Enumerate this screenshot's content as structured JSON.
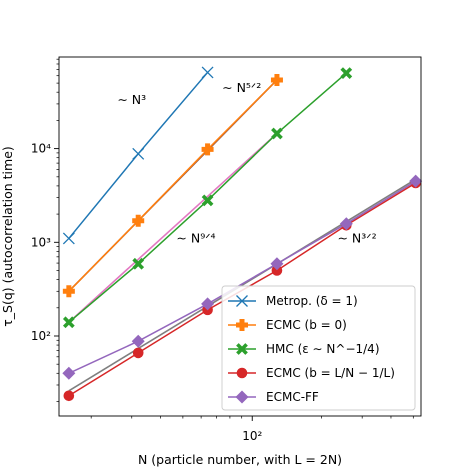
{
  "chart_data": {
    "type": "line",
    "title": "",
    "xlabel": "N (particle number, with L = 2N)",
    "ylabel": "τ_S(q) (autocorrelation time)",
    "x_scale": "log",
    "y_scale": "log",
    "xlim": [
      14.5,
      540
    ],
    "ylim": [
      14,
      95000
    ],
    "x_tick_labels": [
      {
        "value": 100,
        "label": "10²"
      }
    ],
    "y_tick_labels": [
      {
        "value": 100,
        "label": "10²"
      },
      {
        "value": 1000,
        "label": "10³"
      },
      {
        "value": 10000,
        "label": "10⁴"
      }
    ],
    "grid": false,
    "legend_position": "lower-right",
    "series": [
      {
        "name": "Metrop. (δ = 1)",
        "color": "#1f77b4",
        "marker": "x",
        "x": [
          16,
          32,
          64
        ],
        "y": [
          1100,
          8800,
          65000
        ]
      },
      {
        "name": "ECMC (b = 0)",
        "color": "#ff7f0e",
        "marker": "plus",
        "x": [
          16,
          32,
          64,
          128
        ],
        "y": [
          300,
          1700,
          9800,
          54000
        ]
      },
      {
        "name": "HMC (ε ∼ N^−1/4)",
        "color": "#2ca02c",
        "marker": "x-thick",
        "x": [
          16,
          32,
          64,
          128,
          256
        ],
        "y": [
          140,
          590,
          2800,
          14500,
          64000
        ]
      },
      {
        "name": "ECMC (b = L/N − 1/L)",
        "color": "#d62728",
        "marker": "circle",
        "x": [
          16,
          32,
          64,
          128,
          256,
          512
        ],
        "y": [
          23,
          66,
          190,
          500,
          1520,
          4300
        ]
      },
      {
        "name": "ECMC-FF",
        "color": "#9467bd",
        "marker": "diamond",
        "x": [
          16,
          32,
          64,
          128,
          256,
          512
        ],
        "y": [
          40,
          88,
          220,
          590,
          1580,
          4500
        ]
      }
    ],
    "fit_lines": [
      {
        "color": "#8c564b",
        "x": [
          16,
          128
        ],
        "y": [
          300,
          54000
        ]
      },
      {
        "color": "#e377c2",
        "x": [
          16,
          128
        ],
        "y": [
          140,
          14500
        ]
      },
      {
        "color": "#7f7f7f",
        "x": [
          16,
          512
        ],
        "y": [
          26,
          4700
        ]
      }
    ],
    "annotations": [
      {
        "text": "∼ N³",
        "x": 30,
        "y": 30000
      },
      {
        "text": "∼ N⁵ᐟ²",
        "x": 90,
        "y": 40000
      },
      {
        "text": "∼ N⁹ᐟ⁴",
        "x": 57,
        "y": 1000
      },
      {
        "text": "∼ N³ᐟ²",
        "x": 285,
        "y": 1000
      }
    ]
  }
}
